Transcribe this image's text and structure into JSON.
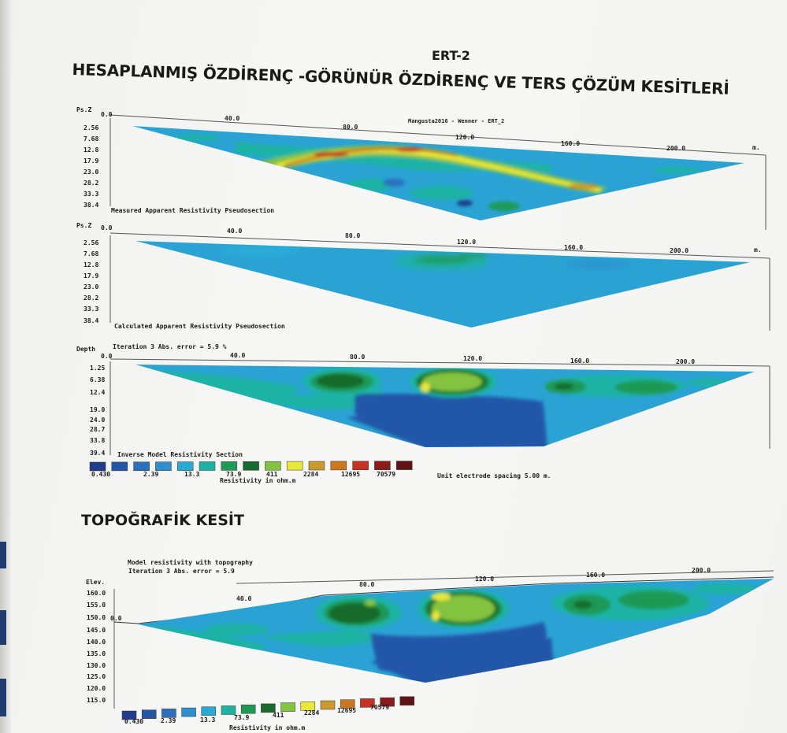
{
  "page": {
    "heading": "ERT-2",
    "title": "HESAPLANMIŞ ÖZDİRENÇ -GÖRÜNÜR ÖZDİRENÇ VE TERS ÇÖZÜM KESİTLERİ",
    "topo_title": "TOPOĞRAFİK KESİT"
  },
  "panel1": {
    "header": "Mangusta2016 - Wenner - ERT_2",
    "axis_label": "Ps.Z",
    "x_ticks": [
      "0.0",
      "40.0",
      "80.0",
      "120.0",
      "160.0",
      "200.0"
    ],
    "x_unit": "m.",
    "depth_ticks": [
      "2.56",
      "7.68",
      "12.8",
      "17.9",
      "23.0",
      "28.2",
      "33.3",
      "38.4"
    ],
    "caption": "Measured Apparent Resistivity Pseudosection"
  },
  "panel2": {
    "axis_label": "Ps.Z",
    "x_ticks": [
      "0.0",
      "40.0",
      "80.0",
      "120.0",
      "160.0",
      "200.0"
    ],
    "x_unit": "m.",
    "depth_ticks": [
      "2.56",
      "7.68",
      "12.8",
      "17.9",
      "23.0",
      "28.2",
      "33.3",
      "38.4"
    ],
    "caption": "Calculated Apparent Resistivity Pseudosection"
  },
  "panel3": {
    "axis_label": "Depth",
    "header": "Iteration 3 Abs. error = 5.9 %",
    "x_ticks": [
      "0.0",
      "40.0",
      "80.0",
      "120.0",
      "160.0",
      "200.0"
    ],
    "depth_ticks": [
      "1.25",
      "6.38",
      "12.4",
      "19.0",
      "24.0",
      "28.7",
      "33.8",
      "39.4"
    ],
    "caption": "Inverse Model Resistivity Section",
    "scale_values": [
      "0.430",
      "2.39",
      "13.3",
      "73.9",
      "411",
      "2284",
      "12695",
      "70579"
    ],
    "scale_label": "Resistivity in ohm.m",
    "spacing_note": "Unit electrode spacing 5.00 m."
  },
  "panel4": {
    "header_line1": "Model resistivity with topography",
    "header_line2": "Iteration 3 Abs. error = 5.9",
    "axis_label": "Elev.",
    "x_ticks": [
      "0.0",
      "40.0",
      "80.0",
      "120.0",
      "160.0",
      "200.0"
    ],
    "elev_ticks": [
      "160.0",
      "155.0",
      "150.0",
      "145.0",
      "140.0",
      "135.0",
      "130.0",
      "125.0",
      "120.0",
      "115.0"
    ],
    "scale_values": [
      "0.430",
      "2.39",
      "13.3",
      "73.9",
      "411",
      "2284",
      "12695",
      "70579"
    ],
    "scale_label": "Resistivity in ohm.m"
  },
  "colors": {
    "scale": [
      "#1f3d8a",
      "#2456a8",
      "#2b6fbe",
      "#2f8ed0",
      "#29a9d6",
      "#1cb3a5",
      "#1e9a55",
      "#186b2c",
      "#84c341",
      "#e9e73a",
      "#c99a2f",
      "#c9781f",
      "#c53326",
      "#8c1b1c",
      "#5e1414"
    ]
  }
}
